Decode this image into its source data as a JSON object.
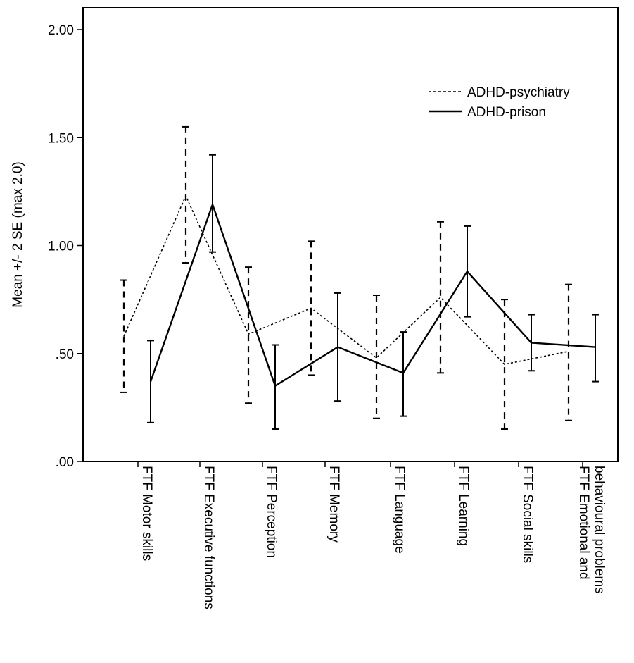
{
  "chart_data": {
    "type": "line",
    "ylabel": "Mean +/- 2 SE (max 2.0)",
    "xlabel": "",
    "ylim": [
      0,
      2.1
    ],
    "yticks": [
      {
        "value": 0,
        "label": ".00"
      },
      {
        "value": 0.5,
        "label": ".50"
      },
      {
        "value": 1.0,
        "label": "1.00"
      },
      {
        "value": 1.5,
        "label": "1.50"
      },
      {
        "value": 2.0,
        "label": "2.00"
      }
    ],
    "categories": [
      [
        "FTF Motor skills"
      ],
      [
        "FTF Executive functions"
      ],
      [
        "FTF Perception"
      ],
      [
        "FTF Memory"
      ],
      [
        "FTF Language"
      ],
      [
        "FTF Learning"
      ],
      [
        "FTF Social skills"
      ],
      [
        "FTF Emotional and",
        "behavioural problems"
      ]
    ],
    "legend_position": "top-right",
    "grid": false,
    "series": [
      {
        "name": "ADHD-psychiatry",
        "style": "dashed",
        "color": "#000000",
        "values": [
          0.58,
          1.23,
          0.59,
          0.71,
          0.48,
          0.76,
          0.45,
          0.51
        ],
        "lower": [
          0.32,
          0.92,
          0.27,
          0.4,
          0.2,
          0.41,
          0.15,
          0.19
        ],
        "upper": [
          0.84,
          1.55,
          0.9,
          1.02,
          0.77,
          1.11,
          0.75,
          0.82
        ]
      },
      {
        "name": "ADHD-prison",
        "style": "solid",
        "color": "#000000",
        "values": [
          0.37,
          1.19,
          0.35,
          0.53,
          0.41,
          0.88,
          0.55,
          0.53
        ],
        "lower": [
          0.18,
          0.97,
          0.15,
          0.28,
          0.21,
          0.67,
          0.42,
          0.37
        ],
        "upper": [
          0.56,
          1.42,
          0.54,
          0.78,
          0.6,
          1.09,
          0.68,
          0.68
        ]
      }
    ]
  }
}
